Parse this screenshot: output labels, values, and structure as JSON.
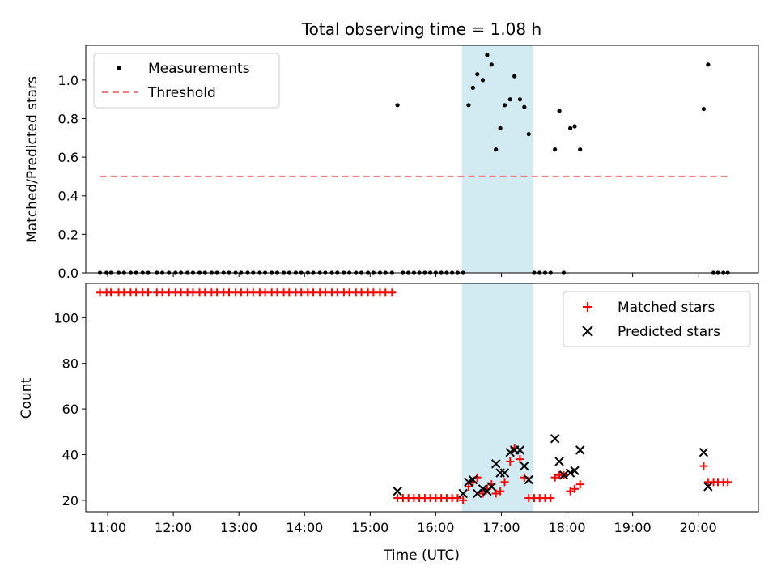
{
  "chart_data": [
    {
      "type": "scatter",
      "title": "Total observing time = 1.08 h",
      "ylabel": "Matched/Predicted stars",
      "xlabel": "",
      "xlim": [
        "10:40",
        "20:55"
      ],
      "ylim": [
        0,
        1.18
      ],
      "yticks": [
        "0.0",
        "0.2",
        "0.4",
        "0.6",
        "0.8",
        "1.0"
      ],
      "shaded_span": {
        "start": "16:24",
        "end": "17:29",
        "color": "#add8e6"
      },
      "legend_position": "upper left",
      "series": [
        {
          "name": "Measurements",
          "marker": "dot",
          "color": "#000000",
          "points": [
            [
              "10:53",
              0
            ],
            [
              "10:59",
              0
            ],
            [
              "11:03",
              0
            ],
            [
              "11:10",
              0
            ],
            [
              "11:15",
              0
            ],
            [
              "11:21",
              0
            ],
            [
              "11:26",
              0
            ],
            [
              "11:32",
              0
            ],
            [
              "11:37",
              0
            ],
            [
              "11:45",
              0
            ],
            [
              "11:50",
              0
            ],
            [
              "11:56",
              0
            ],
            [
              "12:02",
              0
            ],
            [
              "12:07",
              0
            ],
            [
              "12:13",
              0
            ],
            [
              "12:18",
              0
            ],
            [
              "12:24",
              0
            ],
            [
              "12:29",
              0
            ],
            [
              "12:35",
              0
            ],
            [
              "12:40",
              0
            ],
            [
              "12:46",
              0
            ],
            [
              "12:51",
              0
            ],
            [
              "12:57",
              0
            ],
            [
              "13:02",
              0
            ],
            [
              "13:08",
              0
            ],
            [
              "13:13",
              0
            ],
            [
              "13:19",
              0
            ],
            [
              "13:24",
              0
            ],
            [
              "13:30",
              0
            ],
            [
              "13:35",
              0
            ],
            [
              "13:41",
              0
            ],
            [
              "13:46",
              0
            ],
            [
              "13:52",
              0
            ],
            [
              "13:57",
              0
            ],
            [
              "14:03",
              0
            ],
            [
              "14:08",
              0
            ],
            [
              "14:14",
              0
            ],
            [
              "14:19",
              0
            ],
            [
              "14:25",
              0
            ],
            [
              "14:30",
              0
            ],
            [
              "14:36",
              0
            ],
            [
              "14:41",
              0
            ],
            [
              "14:47",
              0
            ],
            [
              "14:52",
              0
            ],
            [
              "14:58",
              0
            ],
            [
              "15:03",
              0
            ],
            [
              "15:09",
              0
            ],
            [
              "15:14",
              0
            ],
            [
              "15:20",
              0
            ],
            [
              "15:25",
              0.87
            ],
            [
              "15:30",
              0
            ],
            [
              "15:35",
              0
            ],
            [
              "15:40",
              0
            ],
            [
              "15:45",
              0
            ],
            [
              "15:50",
              0
            ],
            [
              "15:55",
              0
            ],
            [
              "16:00",
              0
            ],
            [
              "16:05",
              0
            ],
            [
              "16:10",
              0
            ],
            [
              "16:15",
              0
            ],
            [
              "16:20",
              0
            ],
            [
              "16:25",
              0
            ],
            [
              "16:30",
              0.87
            ],
            [
              "16:34",
              0.96
            ],
            [
              "16:38",
              1.03
            ],
            [
              "16:43",
              1.0
            ],
            [
              "16:47",
              1.13
            ],
            [
              "16:51",
              1.08
            ],
            [
              "16:55",
              0.64
            ],
            [
              "16:59",
              0.75
            ],
            [
              "17:03",
              0.87
            ],
            [
              "17:08",
              0.9
            ],
            [
              "17:12",
              1.02
            ],
            [
              "17:17",
              0.9
            ],
            [
              "17:21",
              0.86
            ],
            [
              "17:25",
              0.72
            ],
            [
              "17:30",
              0
            ],
            [
              "17:35",
              0
            ],
            [
              "17:40",
              0
            ],
            [
              "17:45",
              0
            ],
            [
              "17:49",
              0.64
            ],
            [
              "17:53",
              0.84
            ],
            [
              "17:57",
              0
            ],
            [
              "18:03",
              0.75
            ],
            [
              "18:07",
              0.76
            ],
            [
              "18:12",
              0.64
            ],
            [
              "20:05",
              0.85
            ],
            [
              "20:09",
              1.08
            ],
            [
              "20:14",
              0
            ],
            [
              "20:18",
              0
            ],
            [
              "20:23",
              0
            ],
            [
              "20:27",
              0
            ]
          ]
        },
        {
          "name": "Threshold",
          "style": "dashed",
          "color": "#f08080",
          "points": [
            [
              "10:53",
              0.5
            ],
            [
              "20:27",
              0.5
            ]
          ]
        }
      ]
    },
    {
      "type": "scatter",
      "title": "",
      "ylabel": "Count",
      "xlabel": "Time (UTC)",
      "xlim": [
        "10:40",
        "20:55"
      ],
      "ylim": [
        15,
        115
      ],
      "yticks": [
        "20",
        "40",
        "60",
        "80",
        "100"
      ],
      "xticks": [
        "11:00",
        "12:00",
        "13:00",
        "14:00",
        "15:00",
        "16:00",
        "17:00",
        "18:00",
        "19:00",
        "20:00"
      ],
      "shaded_span": {
        "start": "16:24",
        "end": "17:29",
        "color": "#add8e6"
      },
      "legend_position": "upper right",
      "series": [
        {
          "name": "Matched stars",
          "marker": "plus",
          "color": "#ff0000",
          "points": [
            [
              "10:53",
              111
            ],
            [
              "10:59",
              111
            ],
            [
              "11:03",
              111
            ],
            [
              "11:10",
              111
            ],
            [
              "11:15",
              111
            ],
            [
              "11:21",
              111
            ],
            [
              "11:26",
              111
            ],
            [
              "11:32",
              111
            ],
            [
              "11:37",
              111
            ],
            [
              "11:45",
              111
            ],
            [
              "11:50",
              111
            ],
            [
              "11:56",
              111
            ],
            [
              "12:02",
              111
            ],
            [
              "12:07",
              111
            ],
            [
              "12:13",
              111
            ],
            [
              "12:18",
              111
            ],
            [
              "12:24",
              111
            ],
            [
              "12:29",
              111
            ],
            [
              "12:35",
              111
            ],
            [
              "12:40",
              111
            ],
            [
              "12:46",
              111
            ],
            [
              "12:51",
              111
            ],
            [
              "12:57",
              111
            ],
            [
              "13:02",
              111
            ],
            [
              "13:08",
              111
            ],
            [
              "13:13",
              111
            ],
            [
              "13:19",
              111
            ],
            [
              "13:24",
              111
            ],
            [
              "13:30",
              111
            ],
            [
              "13:35",
              111
            ],
            [
              "13:41",
              111
            ],
            [
              "13:46",
              111
            ],
            [
              "13:52",
              111
            ],
            [
              "13:57",
              111
            ],
            [
              "14:03",
              111
            ],
            [
              "14:08",
              111
            ],
            [
              "14:14",
              111
            ],
            [
              "14:19",
              111
            ],
            [
              "14:25",
              111
            ],
            [
              "14:30",
              111
            ],
            [
              "14:36",
              111
            ],
            [
              "14:41",
              111
            ],
            [
              "14:47",
              111
            ],
            [
              "14:52",
              111
            ],
            [
              "14:58",
              111
            ],
            [
              "15:03",
              111
            ],
            [
              "15:09",
              111
            ],
            [
              "15:14",
              111
            ],
            [
              "15:20",
              111
            ],
            [
              "15:25",
              21
            ],
            [
              "15:30",
              21
            ],
            [
              "15:35",
              21
            ],
            [
              "15:40",
              21
            ],
            [
              "15:45",
              21
            ],
            [
              "15:50",
              21
            ],
            [
              "15:55",
              21
            ],
            [
              "16:00",
              21
            ],
            [
              "16:05",
              21
            ],
            [
              "16:10",
              21
            ],
            [
              "16:15",
              21
            ],
            [
              "16:20",
              21
            ],
            [
              "16:25",
              20
            ],
            [
              "16:30",
              26
            ],
            [
              "16:34",
              28
            ],
            [
              "16:38",
              30
            ],
            [
              "16:43",
              23
            ],
            [
              "16:47",
              25
            ],
            [
              "16:51",
              27
            ],
            [
              "16:55",
              23
            ],
            [
              "16:59",
              24
            ],
            [
              "17:03",
              28
            ],
            [
              "17:08",
              37
            ],
            [
              "17:12",
              43
            ],
            [
              "17:17",
              38
            ],
            [
              "17:21",
              30
            ],
            [
              "17:25",
              21
            ],
            [
              "17:30",
              21
            ],
            [
              "17:35",
              21
            ],
            [
              "17:40",
              21
            ],
            [
              "17:45",
              21
            ],
            [
              "17:49",
              30
            ],
            [
              "17:53",
              31
            ],
            [
              "17:57",
              31
            ],
            [
              "18:03",
              24
            ],
            [
              "18:07",
              25
            ],
            [
              "18:12",
              27
            ],
            [
              "20:05",
              35
            ],
            [
              "20:09",
              28
            ],
            [
              "20:14",
              28
            ],
            [
              "20:18",
              28
            ],
            [
              "20:23",
              28
            ],
            [
              "20:27",
              28
            ]
          ]
        },
        {
          "name": "Predicted stars",
          "marker": "x",
          "color": "#000000",
          "points": [
            [
              "15:25",
              24
            ],
            [
              "16:25",
              23
            ],
            [
              "16:30",
              28
            ],
            [
              "16:34",
              29
            ],
            [
              "16:38",
              23
            ],
            [
              "16:43",
              25
            ],
            [
              "16:47",
              24
            ],
            [
              "16:51",
              26
            ],
            [
              "16:55",
              36
            ],
            [
              "16:59",
              32
            ],
            [
              "17:03",
              32
            ],
            [
              "17:08",
              41
            ],
            [
              "17:12",
              42
            ],
            [
              "17:17",
              42
            ],
            [
              "17:21",
              35
            ],
            [
              "17:25",
              29
            ],
            [
              "17:49",
              47
            ],
            [
              "17:53",
              37
            ],
            [
              "17:57",
              31
            ],
            [
              "18:03",
              32
            ],
            [
              "18:07",
              33
            ],
            [
              "18:12",
              42
            ],
            [
              "20:05",
              41
            ],
            [
              "20:09",
              26
            ]
          ]
        }
      ]
    }
  ]
}
